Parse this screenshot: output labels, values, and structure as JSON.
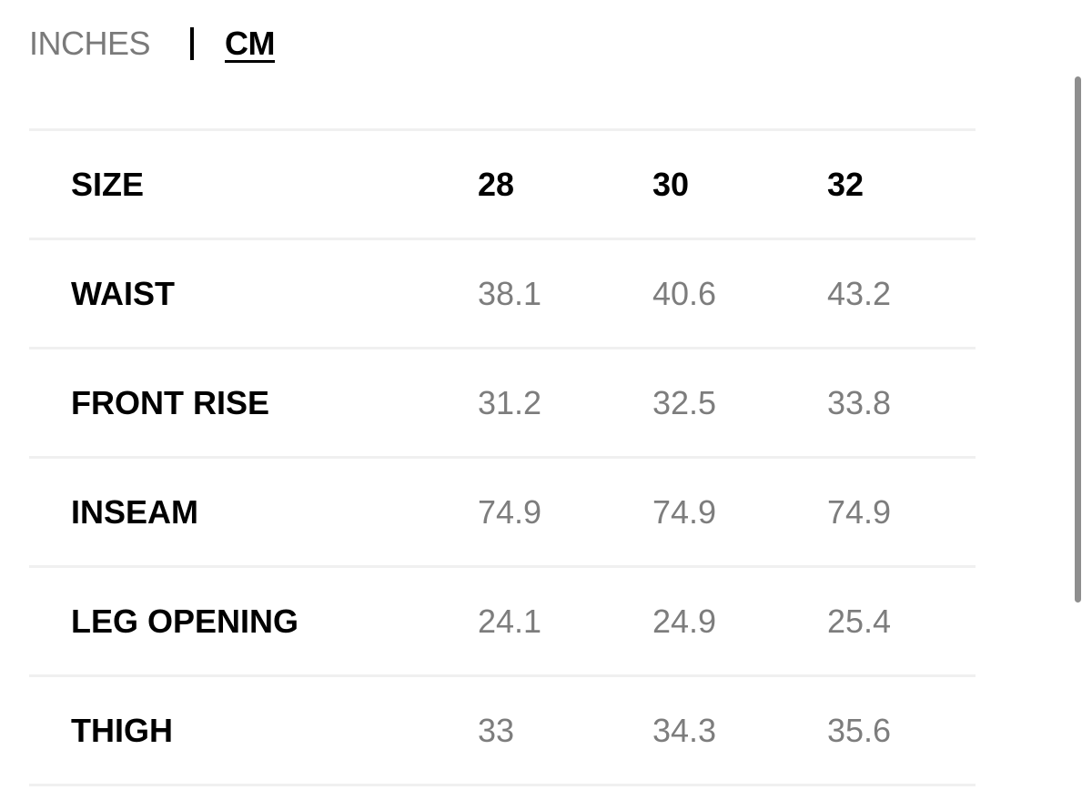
{
  "units": {
    "inches_label": "INCHES",
    "cm_label": "CM",
    "selected": "CM"
  },
  "table": {
    "header": {
      "label": "SIZE",
      "sizes": [
        "28",
        "30",
        "32"
      ]
    },
    "rows": [
      {
        "label": "WAIST",
        "values": [
          "38.1",
          "40.6",
          "43.2"
        ]
      },
      {
        "label": "FRONT RISE",
        "values": [
          "31.2",
          "32.5",
          "33.8"
        ]
      },
      {
        "label": "INSEAM",
        "values": [
          "74.9",
          "74.9",
          "74.9"
        ]
      },
      {
        "label": "LEG OPENING",
        "values": [
          "24.1",
          "24.9",
          "25.4"
        ]
      },
      {
        "label": "THIGH",
        "values": [
          "33",
          "34.3",
          "35.6"
        ]
      }
    ]
  },
  "colors": {
    "text_primary": "#000000",
    "text_muted": "#7d7d7d",
    "divider": "#f0f0f0",
    "scrollbar": "#8e8e8e"
  }
}
